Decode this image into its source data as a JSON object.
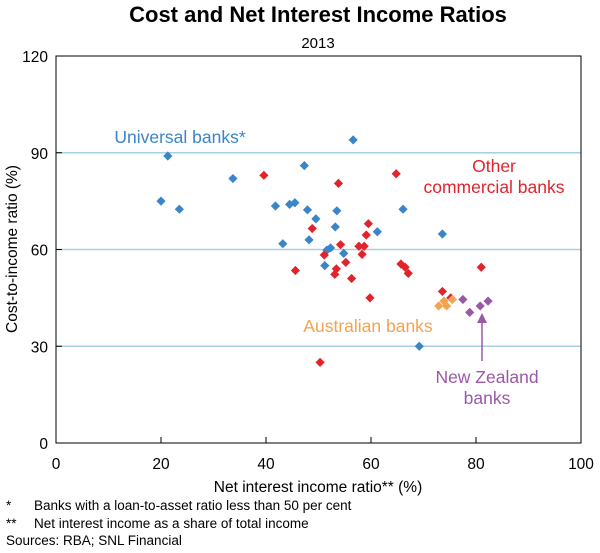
{
  "chart_data": {
    "type": "scatter",
    "title": "Cost and Net Interest Income Ratios",
    "subtitle": "2013",
    "xlabel": "Net interest income ratio** (%)",
    "ylabel": "Cost-to-income ratio (%)",
    "xlim": [
      0,
      100
    ],
    "ylim": [
      0,
      120
    ],
    "x_ticks": [
      0,
      20,
      40,
      60,
      80,
      100
    ],
    "y_ticks": [
      0,
      30,
      60,
      90,
      120
    ],
    "grid": "horizontal",
    "series": [
      {
        "name": "Universal banks*",
        "color": "#3a85c8",
        "points": [
          [
            20,
            75
          ],
          [
            21.3,
            89
          ],
          [
            23.5,
            72.5
          ],
          [
            33.7,
            82
          ],
          [
            41.8,
            73.5
          ],
          [
            43.2,
            61.8
          ],
          [
            44.5,
            74
          ],
          [
            45.5,
            74.5
          ],
          [
            47.3,
            86
          ],
          [
            47.9,
            72.3
          ],
          [
            48.2,
            63
          ],
          [
            49.5,
            69.5
          ],
          [
            51.2,
            55
          ],
          [
            51.6,
            59.8
          ],
          [
            52.3,
            60.5
          ],
          [
            53.2,
            67
          ],
          [
            53.5,
            72
          ],
          [
            54.8,
            58.8
          ],
          [
            56.6,
            94
          ],
          [
            61.2,
            65.5
          ],
          [
            66.1,
            72.5
          ],
          [
            69.2,
            30
          ],
          [
            73.6,
            64.8
          ]
        ]
      },
      {
        "name": "Other commercial banks",
        "color": "#e3232b",
        "points": [
          [
            39.6,
            83
          ],
          [
            45.6,
            53.5
          ],
          [
            48.8,
            66.5
          ],
          [
            50.3,
            25
          ],
          [
            51.1,
            58.3
          ],
          [
            53.1,
            52.3
          ],
          [
            53.4,
            54
          ],
          [
            53.8,
            80.5
          ],
          [
            54.2,
            61.5
          ],
          [
            55.2,
            56
          ],
          [
            56.3,
            51
          ],
          [
            57.7,
            61
          ],
          [
            58.3,
            58.5
          ],
          [
            58.7,
            61
          ],
          [
            59.1,
            64.5
          ],
          [
            59.5,
            68
          ],
          [
            59.8,
            45
          ],
          [
            64.8,
            83.5
          ],
          [
            65.7,
            55.5
          ],
          [
            66.5,
            54.5
          ],
          [
            67.1,
            52.6
          ],
          [
            73.6,
            47
          ],
          [
            75.2,
            45
          ],
          [
            81.0,
            54.5
          ]
        ]
      },
      {
        "name": "Australian banks",
        "color": "#f5a24f",
        "points": [
          [
            72.9,
            42.5
          ],
          [
            73.9,
            44
          ],
          [
            74.4,
            42.5
          ],
          [
            75.5,
            44.5
          ]
        ]
      },
      {
        "name": "New Zealand banks",
        "color": "#9b58a8",
        "points": [
          [
            77.5,
            44.5
          ],
          [
            78.8,
            40.5
          ],
          [
            80.8,
            42.5
          ],
          [
            82.3,
            44
          ]
        ]
      }
    ],
    "annotations": [
      {
        "series": 0,
        "lines": [
          "Universal banks*"
        ]
      },
      {
        "series": 1,
        "lines": [
          "Other",
          "commercial banks"
        ]
      },
      {
        "series": 2,
        "lines": [
          "Australian banks"
        ]
      },
      {
        "series": 3,
        "lines": [
          "New Zealand",
          "banks"
        ]
      }
    ]
  },
  "footnotes": [
    {
      "mark": "*",
      "text": "Banks with a loan-to-asset ratio less than 50 per cent"
    },
    {
      "mark": "**",
      "text": "Net interest income as a share of total income"
    }
  ],
  "sources": "Sources: RBA; SNL Financial",
  "colors": {
    "grid": "#a9cfe3",
    "axis": "#000000"
  }
}
